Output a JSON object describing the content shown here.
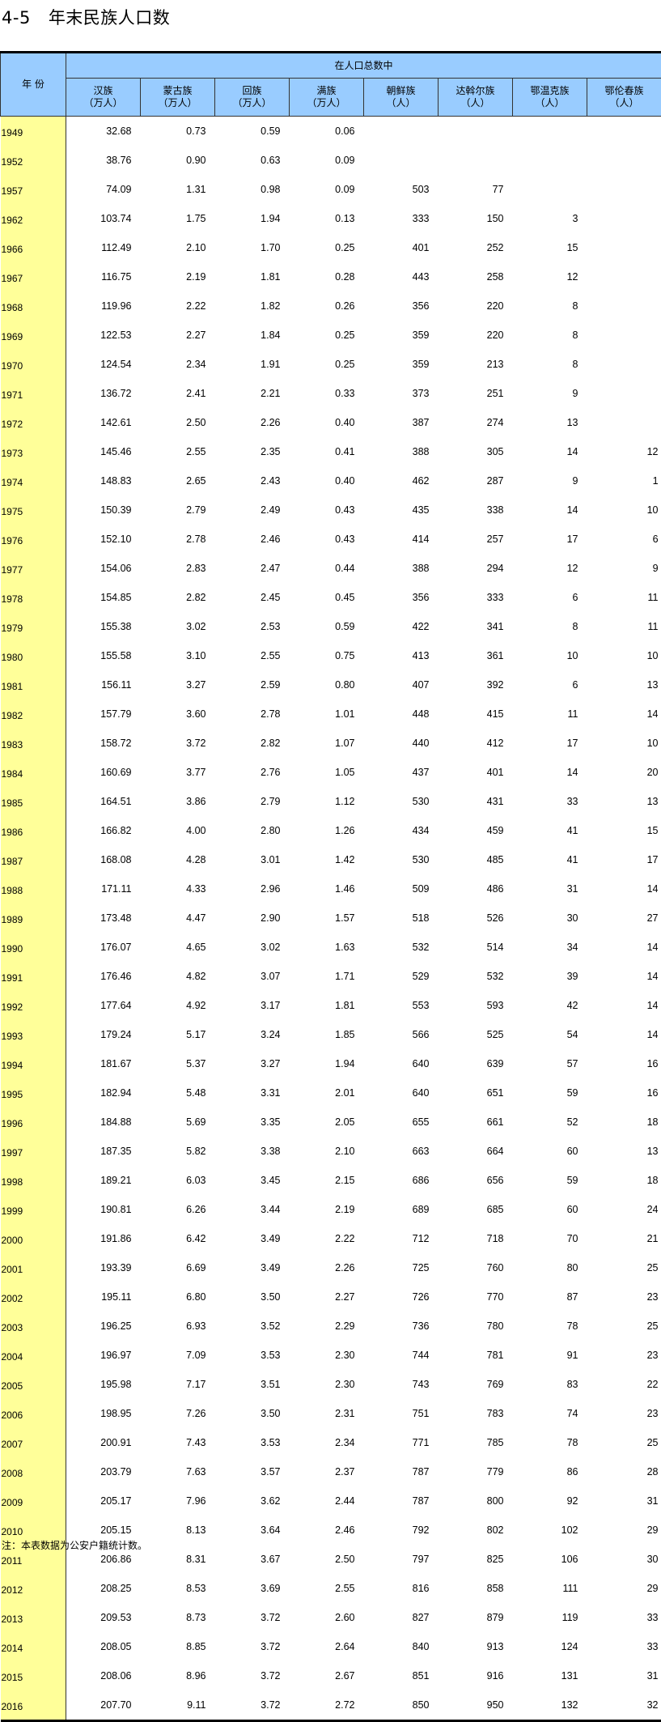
{
  "title": {
    "number": "4-5",
    "text": "年末民族人口数"
  },
  "header": {
    "year_label": "年 份",
    "group_label": "在人口总数中",
    "columns": [
      {
        "name": "汉族",
        "unit": "（万人）"
      },
      {
        "name": "蒙古族",
        "unit": "（万人）"
      },
      {
        "name": "回族",
        "unit": "（万人）"
      },
      {
        "name": "满族",
        "unit": "（万人）"
      },
      {
        "name": "朝鲜族",
        "unit": "（人）"
      },
      {
        "name": "达斡尔族",
        "unit": "（人）"
      },
      {
        "name": "鄂温克族",
        "unit": "（人）"
      },
      {
        "name": "鄂伦春族",
        "unit": "（人）"
      }
    ]
  },
  "colors": {
    "header_bg": "#99CCFF",
    "year_bg": "#FFFF99"
  },
  "rows": [
    [
      "1949",
      "32.68",
      "0.73",
      "0.59",
      "0.06",
      "",
      "",
      "",
      ""
    ],
    [
      "1952",
      "38.76",
      "0.90",
      "0.63",
      "0.09",
      "",
      "",
      "",
      ""
    ],
    [
      "1957",
      "74.09",
      "1.31",
      "0.98",
      "0.09",
      "503",
      "77",
      "",
      ""
    ],
    [
      "1962",
      "103.74",
      "1.75",
      "1.94",
      "0.13",
      "333",
      "150",
      "3",
      ""
    ],
    [
      "1966",
      "112.49",
      "2.10",
      "1.70",
      "0.25",
      "401",
      "252",
      "15",
      ""
    ],
    [
      "1967",
      "116.75",
      "2.19",
      "1.81",
      "0.28",
      "443",
      "258",
      "12",
      ""
    ],
    [
      "1968",
      "119.96",
      "2.22",
      "1.82",
      "0.26",
      "356",
      "220",
      "8",
      ""
    ],
    [
      "1969",
      "122.53",
      "2.27",
      "1.84",
      "0.25",
      "359",
      "220",
      "8",
      ""
    ],
    [
      "1970",
      "124.54",
      "2.34",
      "1.91",
      "0.25",
      "359",
      "213",
      "8",
      ""
    ],
    [
      "1971",
      "136.72",
      "2.41",
      "2.21",
      "0.33",
      "373",
      "251",
      "9",
      ""
    ],
    [
      "1972",
      "142.61",
      "2.50",
      "2.26",
      "0.40",
      "387",
      "274",
      "13",
      ""
    ],
    [
      "1973",
      "145.46",
      "2.55",
      "2.35",
      "0.41",
      "388",
      "305",
      "14",
      "12"
    ],
    [
      "1974",
      "148.83",
      "2.65",
      "2.43",
      "0.40",
      "462",
      "287",
      "9",
      "1"
    ],
    [
      "1975",
      "150.39",
      "2.79",
      "2.49",
      "0.43",
      "435",
      "338",
      "14",
      "10"
    ],
    [
      "1976",
      "152.10",
      "2.78",
      "2.46",
      "0.43",
      "414",
      "257",
      "17",
      "6"
    ],
    [
      "1977",
      "154.06",
      "2.83",
      "2.47",
      "0.44",
      "388",
      "294",
      "12",
      "9"
    ],
    [
      "1978",
      "154.85",
      "2.82",
      "2.45",
      "0.45",
      "356",
      "333",
      "6",
      "11"
    ],
    [
      "1979",
      "155.38",
      "3.02",
      "2.53",
      "0.59",
      "422",
      "341",
      "8",
      "11"
    ],
    [
      "1980",
      "155.58",
      "3.10",
      "2.55",
      "0.75",
      "413",
      "361",
      "10",
      "10"
    ],
    [
      "1981",
      "156.11",
      "3.27",
      "2.59",
      "0.80",
      "407",
      "392",
      "6",
      "13"
    ],
    [
      "1982",
      "157.79",
      "3.60",
      "2.78",
      "1.01",
      "448",
      "415",
      "11",
      "14"
    ],
    [
      "1983",
      "158.72",
      "3.72",
      "2.82",
      "1.07",
      "440",
      "412",
      "17",
      "10"
    ],
    [
      "1984",
      "160.69",
      "3.77",
      "2.76",
      "1.05",
      "437",
      "401",
      "14",
      "20"
    ],
    [
      "1985",
      "164.51",
      "3.86",
      "2.79",
      "1.12",
      "530",
      "431",
      "33",
      "13"
    ],
    [
      "1986",
      "166.82",
      "4.00",
      "2.80",
      "1.26",
      "434",
      "459",
      "41",
      "15"
    ],
    [
      "1987",
      "168.08",
      "4.28",
      "3.01",
      "1.42",
      "530",
      "485",
      "41",
      "17"
    ],
    [
      "1988",
      "171.11",
      "4.33",
      "2.96",
      "1.46",
      "509",
      "486",
      "31",
      "14"
    ],
    [
      "1989",
      "173.48",
      "4.47",
      "2.90",
      "1.57",
      "518",
      "526",
      "30",
      "27"
    ],
    [
      "1990",
      "176.07",
      "4.65",
      "3.02",
      "1.63",
      "532",
      "514",
      "34",
      "14"
    ],
    [
      "1991",
      "176.46",
      "4.82",
      "3.07",
      "1.71",
      "529",
      "532",
      "39",
      "14"
    ],
    [
      "1992",
      "177.64",
      "4.92",
      "3.17",
      "1.81",
      "553",
      "593",
      "42",
      "14"
    ],
    [
      "1993",
      "179.24",
      "5.17",
      "3.24",
      "1.85",
      "566",
      "525",
      "54",
      "14"
    ],
    [
      "1994",
      "181.67",
      "5.37",
      "3.27",
      "1.94",
      "640",
      "639",
      "57",
      "16"
    ],
    [
      "1995",
      "182.94",
      "5.48",
      "3.31",
      "2.01",
      "640",
      "651",
      "59",
      "16"
    ],
    [
      "1996",
      "184.88",
      "5.69",
      "3.35",
      "2.05",
      "655",
      "661",
      "52",
      "18"
    ],
    [
      "1997",
      "187.35",
      "5.82",
      "3.38",
      "2.10",
      "663",
      "664",
      "60",
      "13"
    ],
    [
      "1998",
      "189.21",
      "6.03",
      "3.45",
      "2.15",
      "686",
      "656",
      "59",
      "18"
    ],
    [
      "1999",
      "190.81",
      "6.26",
      "3.44",
      "2.19",
      "689",
      "685",
      "60",
      "24"
    ],
    [
      "2000",
      "191.86",
      "6.42",
      "3.49",
      "2.22",
      "712",
      "718",
      "70",
      "21"
    ],
    [
      "2001",
      "193.39",
      "6.69",
      "3.49",
      "2.26",
      "725",
      "760",
      "80",
      "25"
    ],
    [
      "2002",
      "195.11",
      "6.80",
      "3.50",
      "2.27",
      "726",
      "770",
      "87",
      "23"
    ],
    [
      "2003",
      "196.25",
      "6.93",
      "3.52",
      "2.29",
      "736",
      "780",
      "78",
      "25"
    ],
    [
      "2004",
      "196.97",
      "7.09",
      "3.53",
      "2.30",
      "744",
      "781",
      "91",
      "23"
    ],
    [
      "2005",
      "195.98",
      "7.17",
      "3.51",
      "2.30",
      "743",
      "769",
      "83",
      "22"
    ],
    [
      "2006",
      "198.95",
      "7.26",
      "3.50",
      "2.31",
      "751",
      "783",
      "74",
      "23"
    ],
    [
      "2007",
      "200.91",
      "7.43",
      "3.53",
      "2.34",
      "771",
      "785",
      "78",
      "25"
    ],
    [
      "2008",
      "203.79",
      "7.63",
      "3.57",
      "2.37",
      "787",
      "779",
      "86",
      "28"
    ],
    [
      "2009",
      "205.17",
      "7.96",
      "3.62",
      "2.44",
      "787",
      "800",
      "92",
      "31"
    ],
    [
      "2010",
      "205.15",
      "8.13",
      "3.64",
      "2.46",
      "792",
      "802",
      "102",
      "29"
    ],
    [
      "2011",
      "206.86",
      "8.31",
      "3.67",
      "2.50",
      "797",
      "825",
      "106",
      "30"
    ],
    [
      "2012",
      "208.25",
      "8.53",
      "3.69",
      "2.55",
      "816",
      "858",
      "111",
      "29"
    ],
    [
      "2013",
      "209.53",
      "8.73",
      "3.72",
      "2.60",
      "827",
      "879",
      "119",
      "33"
    ],
    [
      "2014",
      "208.05",
      "8.85",
      "3.72",
      "2.64",
      "840",
      "913",
      "124",
      "33"
    ],
    [
      "2015",
      "208.06",
      "8.96",
      "3.72",
      "2.67",
      "851",
      "916",
      "131",
      "31"
    ],
    [
      "2016",
      "207.70",
      "9.11",
      "3.72",
      "2.72",
      "850",
      "950",
      "132",
      "32"
    ]
  ],
  "note": "注：本表数据为公安户籍统计数。"
}
